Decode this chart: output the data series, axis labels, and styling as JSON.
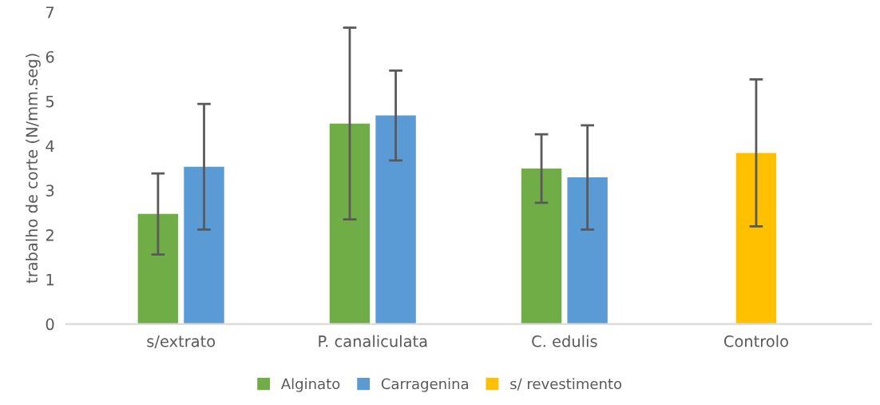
{
  "chart_data": {
    "type": "bar",
    "ylabel": "trabalho de corte (N/mm.seg)",
    "categories": [
      "s/extrato",
      "P. canaliculata",
      "C. edulis",
      "Controlo"
    ],
    "series": [
      {
        "name": "Alginato",
        "color": "#70ad47",
        "values": [
          2.47,
          4.5,
          3.49,
          null
        ],
        "errors": [
          0.91,
          2.15,
          0.77,
          null
        ]
      },
      {
        "name": "Carragenina",
        "color": "#5b9bd5",
        "values": [
          3.53,
          4.68,
          3.29,
          null
        ],
        "errors": [
          1.41,
          1.01,
          1.17,
          null
        ]
      },
      {
        "name": "s/ revestimento",
        "color": "#ffc000",
        "values": [
          null,
          null,
          null,
          3.84
        ],
        "errors": [
          null,
          null,
          null,
          1.65
        ]
      }
    ],
    "ylim": [
      0,
      7
    ],
    "yticks": [
      0,
      1,
      2,
      3,
      4,
      5,
      6,
      7
    ],
    "grid": false,
    "legend": "bottom"
  }
}
